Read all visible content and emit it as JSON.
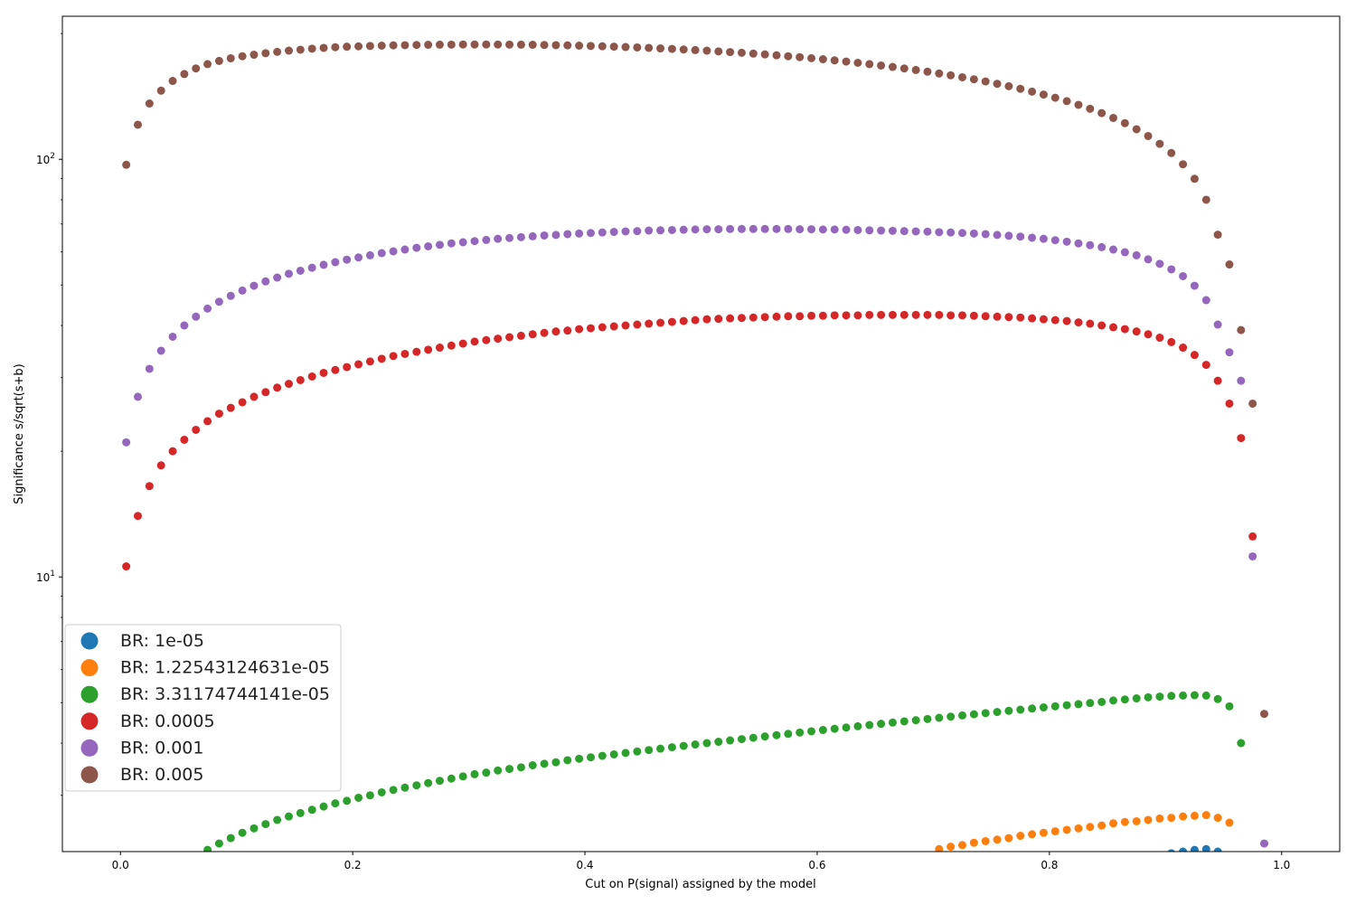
{
  "chart_data": {
    "type": "scatter",
    "title": "",
    "xlabel": "Cut on P(signal) assigned by the model",
    "ylabel": "Significance s/sqrt(s+b)",
    "xscale": "linear",
    "yscale": "log",
    "xlim": [
      -0.05,
      1.05
    ],
    "ylim": [
      2.2,
      220
    ],
    "xticks": [
      0.0,
      0.2,
      0.4,
      0.6,
      0.8,
      1.0
    ],
    "xtick_labels": [
      "0.0",
      "0.2",
      "0.4",
      "0.6",
      "0.8",
      "1.0"
    ],
    "yticks_major": [
      10,
      100
    ],
    "ytick_labels": [
      "10",
      "100"
    ],
    "grid": false,
    "legend_position": "lower-left",
    "series": [
      {
        "name": "BR: 1e-05",
        "color": "#1f77b4",
        "x": [
          0.905,
          0.915,
          0.925,
          0.935,
          0.945
        ],
        "y": [
          2.18,
          2.2,
          2.22,
          2.23,
          2.2
        ]
      },
      {
        "name": "BR: 1.22543124631e-05",
        "color": "#ff7f0e",
        "x": [
          0.705,
          0.715,
          0.725,
          0.735,
          0.745,
          0.755,
          0.765,
          0.775,
          0.785,
          0.795,
          0.805,
          0.815,
          0.825,
          0.835,
          0.845,
          0.855,
          0.865,
          0.875,
          0.885,
          0.895,
          0.905,
          0.915,
          0.925,
          0.935,
          0.945,
          0.955
        ],
        "y": [
          2.23,
          2.26,
          2.28,
          2.31,
          2.33,
          2.35,
          2.37,
          2.4,
          2.42,
          2.44,
          2.46,
          2.48,
          2.5,
          2.52,
          2.54,
          2.57,
          2.59,
          2.6,
          2.62,
          2.64,
          2.65,
          2.67,
          2.68,
          2.69,
          2.65,
          2.58
        ]
      },
      {
        "name": "BR: 3.31174744141e-05",
        "color": "#2ca02c",
        "x": [
          0.075,
          0.085,
          0.095,
          0.105,
          0.115,
          0.125,
          0.135,
          0.145,
          0.155,
          0.165,
          0.175,
          0.185,
          0.195,
          0.205,
          0.215,
          0.225,
          0.235,
          0.245,
          0.255,
          0.265,
          0.275,
          0.285,
          0.295,
          0.305,
          0.315,
          0.325,
          0.335,
          0.345,
          0.355,
          0.365,
          0.375,
          0.385,
          0.395,
          0.405,
          0.415,
          0.425,
          0.435,
          0.445,
          0.455,
          0.465,
          0.475,
          0.485,
          0.495,
          0.505,
          0.515,
          0.525,
          0.535,
          0.545,
          0.555,
          0.565,
          0.575,
          0.585,
          0.595,
          0.605,
          0.615,
          0.625,
          0.635,
          0.645,
          0.655,
          0.665,
          0.675,
          0.685,
          0.695,
          0.705,
          0.715,
          0.725,
          0.735,
          0.745,
          0.755,
          0.765,
          0.775,
          0.785,
          0.795,
          0.805,
          0.815,
          0.825,
          0.835,
          0.845,
          0.855,
          0.865,
          0.875,
          0.885,
          0.895,
          0.905,
          0.915,
          0.925,
          0.935,
          0.945,
          0.955,
          0.965
        ],
        "y": [
          2.22,
          2.3,
          2.37,
          2.44,
          2.5,
          2.56,
          2.62,
          2.67,
          2.72,
          2.77,
          2.82,
          2.87,
          2.91,
          2.96,
          3.0,
          3.05,
          3.09,
          3.13,
          3.17,
          3.21,
          3.25,
          3.29,
          3.33,
          3.37,
          3.4,
          3.44,
          3.47,
          3.5,
          3.54,
          3.57,
          3.6,
          3.64,
          3.67,
          3.7,
          3.73,
          3.76,
          3.79,
          3.82,
          3.85,
          3.88,
          3.91,
          3.94,
          3.97,
          4.0,
          4.03,
          4.06,
          4.09,
          4.12,
          4.15,
          4.18,
          4.21,
          4.24,
          4.27,
          4.3,
          4.33,
          4.36,
          4.39,
          4.42,
          4.45,
          4.48,
          4.51,
          4.54,
          4.57,
          4.6,
          4.63,
          4.66,
          4.69,
          4.72,
          4.75,
          4.78,
          4.81,
          4.84,
          4.87,
          4.9,
          4.93,
          4.96,
          4.99,
          5.02,
          5.06,
          5.09,
          5.12,
          5.15,
          5.17,
          5.19,
          5.2,
          5.21,
          5.2,
          5.1,
          4.9,
          4.0
        ]
      },
      {
        "name": "BR: 0.0005",
        "color": "#d62728",
        "x": [
          0.005,
          0.015,
          0.025,
          0.035,
          0.045,
          0.055,
          0.065,
          0.075,
          0.085,
          0.095,
          0.105,
          0.115,
          0.125,
          0.135,
          0.145,
          0.155,
          0.165,
          0.175,
          0.185,
          0.195,
          0.205,
          0.215,
          0.225,
          0.235,
          0.245,
          0.255,
          0.265,
          0.275,
          0.285,
          0.295,
          0.305,
          0.315,
          0.325,
          0.335,
          0.345,
          0.355,
          0.365,
          0.375,
          0.385,
          0.395,
          0.405,
          0.415,
          0.425,
          0.435,
          0.445,
          0.455,
          0.465,
          0.475,
          0.485,
          0.495,
          0.505,
          0.515,
          0.525,
          0.535,
          0.545,
          0.555,
          0.565,
          0.575,
          0.585,
          0.595,
          0.605,
          0.615,
          0.625,
          0.635,
          0.645,
          0.655,
          0.665,
          0.675,
          0.685,
          0.695,
          0.705,
          0.715,
          0.725,
          0.735,
          0.745,
          0.755,
          0.765,
          0.775,
          0.785,
          0.795,
          0.805,
          0.815,
          0.825,
          0.835,
          0.845,
          0.855,
          0.865,
          0.875,
          0.885,
          0.895,
          0.905,
          0.915,
          0.925,
          0.935,
          0.945,
          0.955,
          0.965,
          0.975
        ],
        "y": [
          10.6,
          14.0,
          16.5,
          18.5,
          20.0,
          21.3,
          22.5,
          23.6,
          24.6,
          25.4,
          26.2,
          27.0,
          27.7,
          28.4,
          29.0,
          29.6,
          30.2,
          30.8,
          31.3,
          31.8,
          32.3,
          32.8,
          33.3,
          33.8,
          34.2,
          34.6,
          35.0,
          35.4,
          35.8,
          36.2,
          36.6,
          36.9,
          37.2,
          37.5,
          37.8,
          38.1,
          38.4,
          38.7,
          38.9,
          39.2,
          39.4,
          39.6,
          39.8,
          40.0,
          40.2,
          40.4,
          40.6,
          40.8,
          41.0,
          41.2,
          41.4,
          41.5,
          41.6,
          41.7,
          41.8,
          41.9,
          42.0,
          42.1,
          42.1,
          42.2,
          42.2,
          42.3,
          42.3,
          42.3,
          42.4,
          42.4,
          42.4,
          42.4,
          42.4,
          42.4,
          42.4,
          42.3,
          42.3,
          42.2,
          42.1,
          42.0,
          41.9,
          41.8,
          41.6,
          41.4,
          41.2,
          41.0,
          40.7,
          40.4,
          40.0,
          39.6,
          39.2,
          38.7,
          38.1,
          37.4,
          36.5,
          35.4,
          34.0,
          32.2,
          29.5,
          26.0,
          21.5,
          12.5
        ]
      },
      {
        "name": "BR: 0.001",
        "color": "#9467bd",
        "x": [
          0.005,
          0.015,
          0.025,
          0.035,
          0.045,
          0.055,
          0.065,
          0.075,
          0.085,
          0.095,
          0.105,
          0.115,
          0.125,
          0.135,
          0.145,
          0.155,
          0.165,
          0.175,
          0.185,
          0.195,
          0.205,
          0.215,
          0.225,
          0.235,
          0.245,
          0.255,
          0.265,
          0.275,
          0.285,
          0.295,
          0.305,
          0.315,
          0.325,
          0.335,
          0.345,
          0.355,
          0.365,
          0.375,
          0.385,
          0.395,
          0.405,
          0.415,
          0.425,
          0.435,
          0.445,
          0.455,
          0.465,
          0.475,
          0.485,
          0.495,
          0.505,
          0.515,
          0.525,
          0.535,
          0.545,
          0.555,
          0.565,
          0.575,
          0.585,
          0.595,
          0.605,
          0.615,
          0.625,
          0.635,
          0.645,
          0.655,
          0.665,
          0.675,
          0.685,
          0.695,
          0.705,
          0.715,
          0.725,
          0.735,
          0.745,
          0.755,
          0.765,
          0.775,
          0.785,
          0.795,
          0.805,
          0.815,
          0.825,
          0.835,
          0.845,
          0.855,
          0.865,
          0.875,
          0.885,
          0.895,
          0.905,
          0.915,
          0.925,
          0.935,
          0.945,
          0.955,
          0.965,
          0.975,
          0.985
        ],
        "y": [
          21.0,
          27.0,
          31.5,
          34.8,
          37.6,
          40.0,
          42.0,
          43.9,
          45.6,
          47.1,
          48.5,
          49.8,
          51.0,
          52.1,
          53.2,
          54.1,
          55.0,
          55.9,
          56.7,
          57.5,
          58.2,
          58.9,
          59.6,
          60.2,
          60.8,
          61.4,
          61.9,
          62.4,
          62.9,
          63.3,
          63.7,
          64.1,
          64.5,
          64.8,
          65.1,
          65.4,
          65.7,
          65.9,
          66.2,
          66.4,
          66.6,
          66.8,
          67.0,
          67.2,
          67.3,
          67.5,
          67.6,
          67.7,
          67.8,
          67.9,
          68.0,
          68.0,
          68.1,
          68.1,
          68.1,
          68.1,
          68.1,
          68.1,
          68.0,
          68.0,
          67.9,
          67.9,
          67.8,
          67.7,
          67.6,
          67.5,
          67.4,
          67.3,
          67.2,
          67.1,
          66.9,
          66.8,
          66.6,
          66.4,
          66.2,
          65.9,
          65.6,
          65.3,
          64.9,
          64.5,
          64.0,
          63.5,
          62.9,
          62.3,
          61.6,
          60.8,
          59.9,
          58.9,
          57.6,
          56.2,
          54.5,
          52.5,
          49.8,
          46.0,
          40.2,
          34.5,
          29.5,
          11.2,
          2.3
        ]
      },
      {
        "name": "BR: 0.005",
        "color": "#8c564b",
        "x": [
          0.005,
          0.015,
          0.025,
          0.035,
          0.045,
          0.055,
          0.065,
          0.075,
          0.085,
          0.095,
          0.105,
          0.115,
          0.125,
          0.135,
          0.145,
          0.155,
          0.165,
          0.175,
          0.185,
          0.195,
          0.205,
          0.215,
          0.225,
          0.235,
          0.245,
          0.255,
          0.265,
          0.275,
          0.285,
          0.295,
          0.305,
          0.315,
          0.325,
          0.335,
          0.345,
          0.355,
          0.365,
          0.375,
          0.385,
          0.395,
          0.405,
          0.415,
          0.425,
          0.435,
          0.445,
          0.455,
          0.465,
          0.475,
          0.485,
          0.495,
          0.505,
          0.515,
          0.525,
          0.535,
          0.545,
          0.555,
          0.565,
          0.575,
          0.585,
          0.595,
          0.605,
          0.615,
          0.625,
          0.635,
          0.645,
          0.655,
          0.665,
          0.675,
          0.685,
          0.695,
          0.705,
          0.715,
          0.725,
          0.735,
          0.745,
          0.755,
          0.765,
          0.775,
          0.785,
          0.795,
          0.805,
          0.815,
          0.825,
          0.835,
          0.845,
          0.855,
          0.865,
          0.875,
          0.885,
          0.895,
          0.905,
          0.915,
          0.925,
          0.935,
          0.945,
          0.955,
          0.965,
          0.975,
          0.985
        ],
        "y": [
          97.0,
          121.0,
          136.0,
          146.0,
          154.0,
          160.0,
          165.0,
          169.0,
          172.0,
          174.5,
          176.5,
          178.0,
          179.5,
          180.8,
          182.0,
          183.0,
          184.0,
          184.8,
          185.5,
          186.0,
          186.4,
          186.8,
          187.1,
          187.4,
          187.6,
          187.8,
          188.0,
          188.1,
          188.2,
          188.3,
          188.3,
          188.3,
          188.3,
          188.2,
          188.1,
          188.0,
          187.8,
          187.6,
          187.4,
          187.1,
          186.8,
          186.5,
          186.1,
          185.7,
          185.3,
          184.8,
          184.3,
          183.8,
          183.2,
          182.6,
          182.0,
          181.3,
          180.6,
          179.9,
          179.1,
          178.3,
          177.4,
          176.5,
          175.6,
          174.6,
          173.6,
          172.5,
          171.4,
          170.2,
          169.0,
          167.7,
          166.4,
          165.0,
          163.6,
          162.1,
          160.5,
          158.9,
          157.2,
          155.4,
          153.6,
          151.6,
          149.6,
          147.5,
          145.2,
          142.9,
          140.4,
          137.8,
          135.0,
          132.1,
          129.0,
          125.6,
          122.0,
          118.0,
          113.7,
          108.9,
          103.5,
          97.3,
          89.8,
          80.0,
          66.0,
          56.0,
          39.0,
          26.0,
          4.7
        ]
      }
    ]
  },
  "legend": {
    "items": [
      {
        "label": "BR: 1e-05",
        "color": "#1f77b4"
      },
      {
        "label": "BR: 1.22543124631e-05",
        "color": "#ff7f0e"
      },
      {
        "label": "BR: 3.31174744141e-05",
        "color": "#2ca02c"
      },
      {
        "label": "BR: 0.0005",
        "color": "#d62728"
      },
      {
        "label": "BR: 0.001",
        "color": "#9467bd"
      },
      {
        "label": "BR: 0.005",
        "color": "#8c564b"
      }
    ]
  }
}
